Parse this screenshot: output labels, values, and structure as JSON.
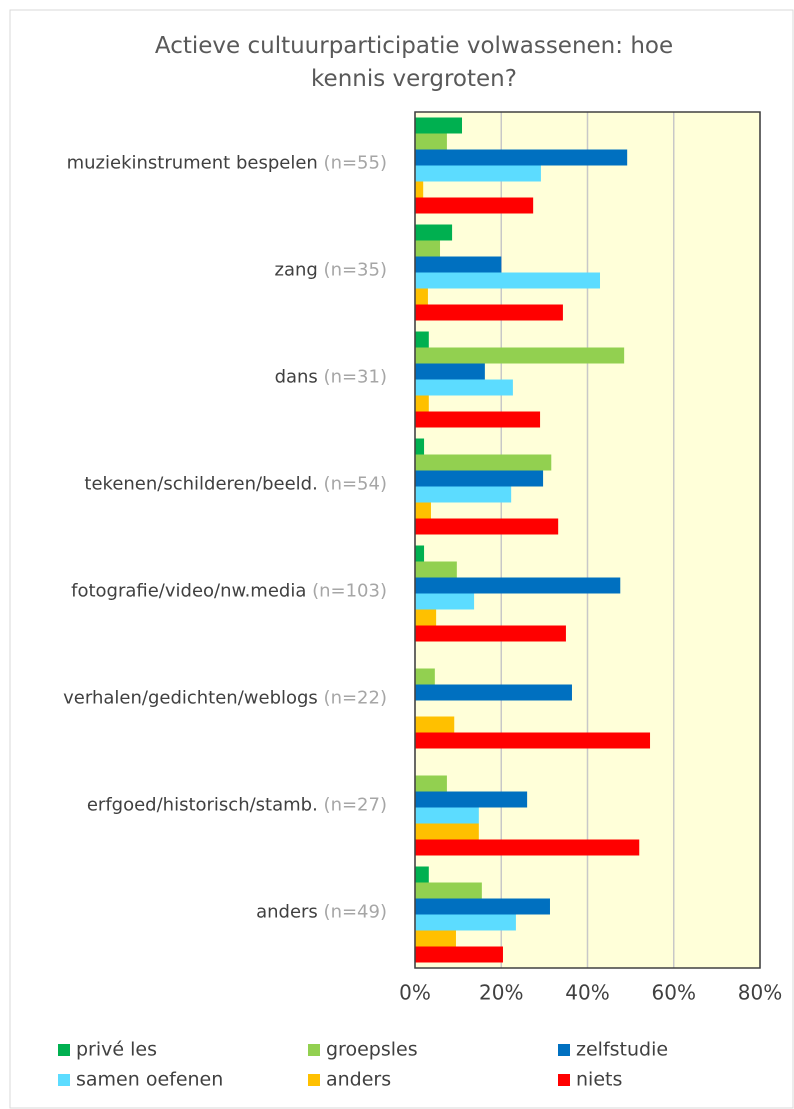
{
  "chart_data": {
    "type": "hbar",
    "title": "Actieve cultuurparticipatie volwassenen: hoe kennis vergroten?",
    "categories": [
      "muziekinstrument bespelen",
      "zang",
      "dans",
      "tekenen/schilderen/beeld.",
      "fotografie/video/nw.media",
      "verhalen/gedichten/weblogs",
      "erfgoed/historisch/stamb.",
      "anders"
    ],
    "category_notes": [
      "(n=55)",
      "(n=35)",
      "(n=31)",
      "(n=54)",
      "(n=103)",
      "(n=22)",
      "(n=27)",
      "(n=49)"
    ],
    "series": [
      {
        "name": "privé les",
        "color": "#00b050",
        "values": [
          10.9,
          8.6,
          3.2,
          2.1,
          2.1,
          0,
          0,
          3.2
        ]
      },
      {
        "name": "groepsles",
        "color": "#92d050",
        "values": [
          7.4,
          5.8,
          48.5,
          31.6,
          9.7,
          4.6,
          7.4,
          15.5
        ]
      },
      {
        "name": "zelfstudie",
        "color": "#0070c0",
        "values": [
          49.2,
          20,
          16.2,
          29.7,
          47.6,
          36.4,
          26,
          31.3
        ]
      },
      {
        "name": "samen oefenen",
        "color": "#5cdcff",
        "values": [
          29.2,
          42.9,
          22.7,
          22.3,
          13.7,
          0,
          14.8,
          23.4
        ]
      },
      {
        "name": "anders",
        "color": "#ffc000",
        "values": [
          1.9,
          3,
          3.2,
          3.7,
          4.9,
          9.1,
          14.8,
          9.5
        ]
      },
      {
        "name": "niets",
        "color": "#ff0000",
        "values": [
          27.4,
          34.3,
          29,
          33.2,
          35,
          54.5,
          52,
          20.4
        ]
      }
    ],
    "xlim": [
      0,
      80
    ],
    "xticks": [
      {
        "value": 0,
        "label": "0%"
      },
      {
        "value": 20,
        "label": "20%"
      },
      {
        "value": 40,
        "label": "40%"
      },
      {
        "value": 60,
        "label": "60%"
      },
      {
        "value": 80,
        "label": "80%"
      }
    ],
    "grid": true,
    "legend": "bottom",
    "plot_background": "#ffffd9"
  }
}
